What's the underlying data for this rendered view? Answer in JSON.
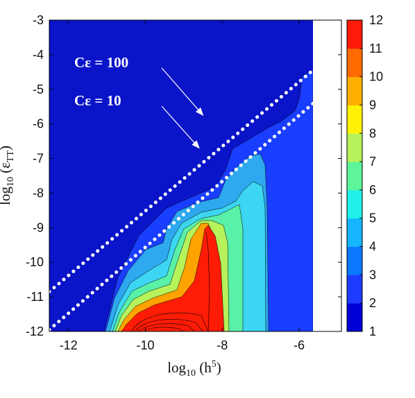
{
  "chart_data": {
    "type": "contour",
    "xlabel": "log₁₀ (h⁵)",
    "ylabel": "log₁₀ (ε_TT)",
    "xlim": [
      -12.5,
      -4.9
    ],
    "ylim": [
      -12,
      -3
    ],
    "data_x_max": -5.0,
    "x_ticks": [
      "-12",
      "-10",
      "-8",
      "-6"
    ],
    "y_ticks": [
      "-3",
      "-4",
      "-5",
      "-6",
      "-7",
      "-8",
      "-9",
      "-10",
      "-11",
      "-12"
    ],
    "colorbar": {
      "ticks": [
        "1",
        "2",
        "3",
        "4",
        "5",
        "6",
        "7",
        "8",
        "9",
        "10",
        "11",
        "12"
      ],
      "range": [
        1,
        12
      ],
      "colors": [
        "#00008f",
        "#0000d6",
        "#1e3cff",
        "#0a78ff",
        "#15b5ff",
        "#20f0e8",
        "#5ef59a",
        "#b8f25a",
        "#fff205",
        "#ffb000",
        "#ff6a00",
        "#ff1a0a"
      ]
    },
    "region_colors": {
      "background": "#0a14c8",
      "level3": "#1a3eff",
      "level4": "#2ea8ef",
      "level5": "#3dd6f2",
      "level6": "#59f0a8",
      "level7": "#b6f25a",
      "level8": "#ffa300",
      "level9": "#ff1c06"
    },
    "lines": [
      {
        "label": "Cε = 100",
        "x": [
          -12.5,
          -5.0
        ],
        "y": [
          -10.85,
          -3.85
        ]
      },
      {
        "label": "Cε = 10",
        "x": [
          -12.5,
          -5.0
        ],
        "y": [
          -11.95,
          -4.8
        ]
      }
    ],
    "annotations": [
      {
        "text": "Cε = 100",
        "points_to": [
          -8.5,
          -5.75
        ]
      },
      {
        "text": "Cε = 10",
        "points_to": [
          -8.6,
          -6.7
        ]
      }
    ]
  }
}
